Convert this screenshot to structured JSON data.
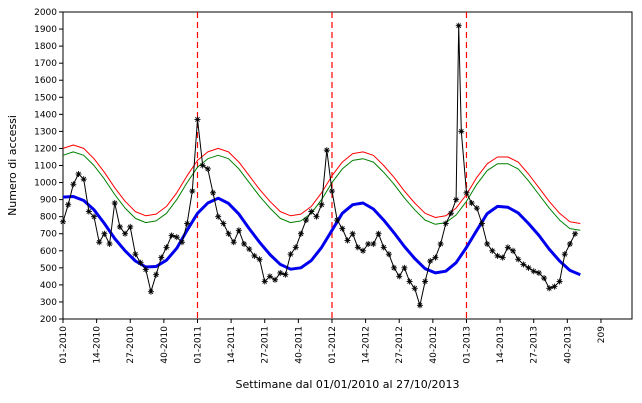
{
  "chart_data": {
    "type": "line",
    "xlabel": "Settimane dal 01/01/2010 al 27/10/2013",
    "ylabel": "Numero di accessi",
    "ylim": [
      200,
      2000
    ],
    "y_ticks": [
      200,
      300,
      400,
      500,
      600,
      700,
      800,
      900,
      1000,
      1100,
      1200,
      1300,
      1400,
      1500,
      1600,
      1700,
      1800,
      1900,
      2000
    ],
    "x_range_weeks": [
      1,
      210
    ],
    "x_ticks": [
      {
        "week": 1,
        "label": "01-2010"
      },
      {
        "week": 14,
        "label": "14-2010"
      },
      {
        "week": 27,
        "label": "27-2010"
      },
      {
        "week": 40,
        "label": "40-2010"
      },
      {
        "week": 53,
        "label": "01-2011"
      },
      {
        "week": 66,
        "label": "14-2011"
      },
      {
        "week": 79,
        "label": "27-2011"
      },
      {
        "week": 92,
        "label": "40-2011"
      },
      {
        "week": 105,
        "label": "01-2012"
      },
      {
        "week": 118,
        "label": "14-2012"
      },
      {
        "week": 131,
        "label": "27-2012"
      },
      {
        "week": 144,
        "label": "40-2012"
      },
      {
        "week": 157,
        "label": "01-2013"
      },
      {
        "week": 170,
        "label": "14-2013"
      },
      {
        "week": 183,
        "label": "27-2013"
      },
      {
        "week": 196,
        "label": "40-2013"
      },
      {
        "week": 209,
        "label": "209"
      }
    ],
    "vertical_markers_week": [
      53,
      105,
      157
    ],
    "colors": {
      "observed": "#000000",
      "baseline": "#0000ee",
      "upper_threshold_1": "#008000",
      "upper_threshold_2": "#ff0000",
      "markers": "#ff0000"
    },
    "series": [
      {
        "style": "line-with-star-markers",
        "x": [
          1,
          3,
          5,
          7,
          9,
          11,
          13,
          15,
          17,
          19,
          21,
          23,
          25,
          27,
          29,
          31,
          33,
          35,
          37,
          39,
          41,
          43,
          45,
          47,
          49,
          51,
          53,
          55,
          57,
          59,
          61,
          63,
          65,
          67,
          69,
          71,
          73,
          75,
          77,
          79,
          81,
          83,
          85,
          87,
          89,
          91,
          93,
          95,
          97,
          99,
          101,
          103,
          105,
          107,
          109,
          111,
          113,
          115,
          117,
          119,
          121,
          123,
          125,
          127,
          129,
          131,
          133,
          135,
          137,
          139,
          141,
          143,
          145,
          147,
          149,
          151,
          153,
          154,
          155,
          157,
          159,
          161,
          163,
          165,
          167,
          169,
          171,
          173,
          175,
          177,
          179,
          181,
          183,
          185,
          187,
          189,
          191,
          193,
          195,
          197,
          199
        ],
        "y": [
          770,
          870,
          990,
          1050,
          1020,
          830,
          800,
          650,
          700,
          640,
          880,
          740,
          700,
          740,
          580,
          530,
          490,
          360,
          460,
          560,
          620,
          690,
          680,
          650,
          760,
          950,
          1370,
          1100,
          1080,
          940,
          800,
          760,
          700,
          650,
          720,
          640,
          610,
          570,
          550,
          420,
          450,
          430,
          470,
          460,
          580,
          620,
          700,
          780,
          830,
          800,
          870,
          1190,
          950,
          780,
          730,
          660,
          700,
          620,
          600,
          640,
          640,
          700,
          620,
          580,
          500,
          450,
          500,
          420,
          380,
          280,
          420,
          540,
          560,
          640,
          760,
          820,
          900,
          1920,
          1300,
          940,
          880,
          850,
          760,
          640,
          600,
          570,
          560,
          620,
          600,
          550,
          520,
          500,
          480,
          470,
          440,
          380,
          390,
          420,
          580,
          640,
          700
        ]
      },
      {
        "style": "baseline",
        "x": [
          1,
          5,
          9,
          13,
          17,
          21,
          25,
          29,
          33,
          37,
          41,
          45,
          49,
          53,
          57,
          61,
          65,
          69,
          73,
          77,
          81,
          85,
          89,
          93,
          97,
          101,
          105,
          109,
          113,
          117,
          121,
          125,
          129,
          133,
          137,
          141,
          145,
          149,
          153,
          157,
          161,
          165,
          169,
          173,
          177,
          181,
          185,
          189,
          193,
          197,
          201
        ],
        "y": [
          915,
          918,
          895,
          840,
          760,
          672,
          600,
          540,
          505,
          508,
          545,
          615,
          720,
          820,
          880,
          908,
          878,
          815,
          730,
          650,
          578,
          520,
          492,
          500,
          543,
          620,
          720,
          820,
          870,
          880,
          845,
          780,
          705,
          625,
          555,
          495,
          470,
          480,
          530,
          620,
          720,
          818,
          860,
          855,
          822,
          760,
          690,
          610,
          540,
          485,
          460
        ]
      },
      {
        "style": "upper-threshold",
        "x": [
          1,
          5,
          9,
          13,
          17,
          21,
          25,
          29,
          33,
          37,
          41,
          45,
          49,
          53,
          57,
          61,
          65,
          69,
          73,
          77,
          81,
          85,
          89,
          93,
          97,
          101,
          105,
          109,
          113,
          117,
          121,
          125,
          129,
          133,
          137,
          141,
          145,
          149,
          153,
          157,
          161,
          165,
          169,
          173,
          177,
          181,
          185,
          189,
          193,
          197,
          201
        ],
        "y": [
          1160,
          1180,
          1160,
          1100,
          1020,
          930,
          850,
          790,
          765,
          775,
          820,
          900,
          1000,
          1090,
          1140,
          1160,
          1140,
          1080,
          1000,
          920,
          850,
          790,
          765,
          775,
          820,
          900,
          1000,
          1080,
          1130,
          1140,
          1120,
          1060,
          990,
          910,
          840,
          780,
          755,
          765,
          810,
          890,
          990,
          1070,
          1110,
          1110,
          1080,
          1010,
          930,
          850,
          780,
          730,
          720
        ]
      },
      {
        "style": "upper-threshold",
        "x": [
          1,
          5,
          9,
          13,
          17,
          21,
          25,
          29,
          33,
          37,
          41,
          45,
          49,
          53,
          57,
          61,
          65,
          69,
          73,
          77,
          81,
          85,
          89,
          93,
          97,
          101,
          105,
          109,
          113,
          117,
          121,
          125,
          129,
          133,
          137,
          141,
          145,
          149,
          153,
          157,
          161,
          165,
          169,
          173,
          177,
          181,
          185,
          189,
          193,
          197,
          201
        ],
        "y": [
          1200,
          1220,
          1200,
          1140,
          1060,
          970,
          890,
          830,
          805,
          815,
          860,
          940,
          1040,
          1130,
          1180,
          1200,
          1180,
          1120,
          1040,
          960,
          890,
          830,
          805,
          815,
          860,
          940,
          1040,
          1120,
          1170,
          1180,
          1160,
          1100,
          1030,
          950,
          880,
          820,
          795,
          805,
          850,
          930,
          1030,
          1110,
          1150,
          1150,
          1120,
          1050,
          970,
          890,
          820,
          770,
          760
        ]
      }
    ]
  }
}
